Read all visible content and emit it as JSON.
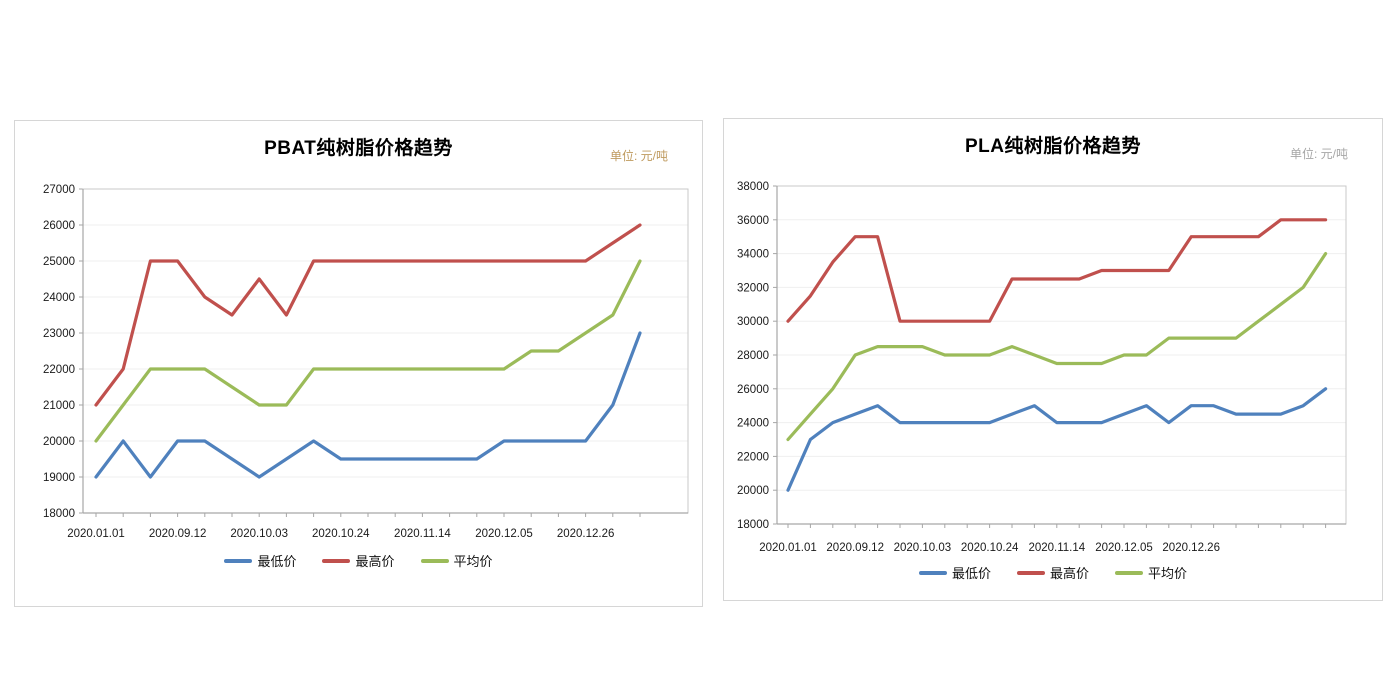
{
  "page": {
    "background": "#ffffff"
  },
  "chart_data": [
    {
      "id": "pbat",
      "type": "line",
      "title": "PBAT纯树脂价格趋势",
      "unit_label": "单位: 元/吨",
      "legend_position": "bottom",
      "grid": true,
      "y_axis": {
        "min": 18000,
        "max": 27000,
        "step": 1000
      },
      "x_tick_labels": [
        "2020.01.01",
        "2020.09.12",
        "2020.10.03",
        "2020.10.24",
        "2020.11.14",
        "2020.12.05",
        "2020.12.26"
      ],
      "label_interval": 3,
      "series": [
        {
          "name": "最低价",
          "color": "#4F81BD",
          "values": [
            19000,
            20000,
            19000,
            20000,
            20000,
            19500,
            19000,
            19500,
            20000,
            19500,
            19500,
            19500,
            19500,
            19500,
            19500,
            20000,
            20000,
            20000,
            20000,
            21000,
            23000
          ]
        },
        {
          "name": "最高价",
          "color": "#C0504D",
          "values": [
            21000,
            22000,
            25000,
            25000,
            24000,
            23500,
            24500,
            23500,
            25000,
            25000,
            25000,
            25000,
            25000,
            25000,
            25000,
            25000,
            25000,
            25000,
            25000,
            25500,
            26000
          ]
        },
        {
          "name": "平均价",
          "color": "#9BBB59",
          "values": [
            20000,
            21000,
            22000,
            22000,
            22000,
            21500,
            21000,
            21000,
            22000,
            22000,
            22000,
            22000,
            22000,
            22000,
            22000,
            22000,
            22500,
            22500,
            23000,
            23500,
            25000
          ]
        }
      ]
    },
    {
      "id": "pla",
      "type": "line",
      "title": "PLA纯树脂价格趋势",
      "unit_label": "单位: 元/吨",
      "legend_position": "bottom",
      "grid": true,
      "y_axis": {
        "min": 18000,
        "max": 38000,
        "step": 2000
      },
      "x_tick_labels": [
        "2020.01.01",
        "2020.09.12",
        "2020.10.03",
        "2020.10.24",
        "2020.11.14",
        "2020.12.05",
        "2020.12.26"
      ],
      "label_interval": 3,
      "series": [
        {
          "name": "最低价",
          "color": "#4F81BD",
          "values": [
            20000,
            23000,
            24000,
            24500,
            25000,
            24000,
            24000,
            24000,
            24000,
            24000,
            24500,
            25000,
            24000,
            24000,
            24000,
            24500,
            25000,
            24000,
            25000,
            25000,
            24500,
            24500,
            24500,
            25000,
            26000
          ]
        },
        {
          "name": "最高价",
          "color": "#C0504D",
          "values": [
            30000,
            31500,
            33500,
            35000,
            35000,
            30000,
            30000,
            30000,
            30000,
            30000,
            32500,
            32500,
            32500,
            32500,
            33000,
            33000,
            33000,
            33000,
            35000,
            35000,
            35000,
            35000,
            36000,
            36000,
            36000
          ]
        },
        {
          "name": "平均价",
          "color": "#9BBB59",
          "values": [
            23000,
            24500,
            26000,
            28000,
            28500,
            28500,
            28500,
            28000,
            28000,
            28000,
            28500,
            28000,
            27500,
            27500,
            27500,
            28000,
            28000,
            29000,
            29000,
            29000,
            29000,
            30000,
            31000,
            32000,
            34000
          ]
        }
      ]
    }
  ],
  "style_colors": {
    "gridline": "#EFEFEF",
    "plot_border": "#C9C9C9",
    "axis_line": "#A6A6A6",
    "tick": "#A6A6A6",
    "axis_text": "#1a1a1a"
  }
}
